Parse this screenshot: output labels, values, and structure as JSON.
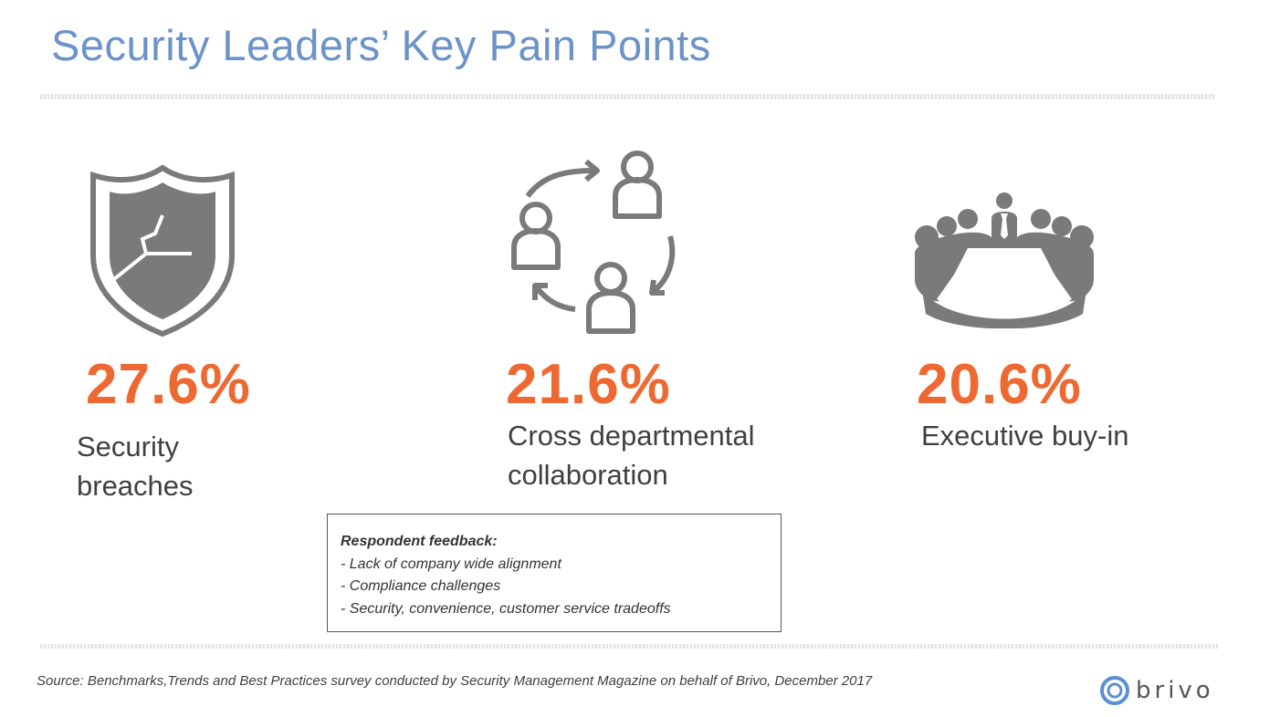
{
  "title": "Security Leaders’ Key Pain Points",
  "stats": [
    {
      "value": "27.6%",
      "label_lines": [
        "Security",
        "breaches"
      ],
      "icon": "broken-shield-icon"
    },
    {
      "value": "21.6%",
      "label_lines": [
        "Cross departmental",
        "collaboration"
      ],
      "icon": "collaboration-cycle-icon"
    },
    {
      "value": "20.6%",
      "label_lines": [
        "Executive buy-in"
      ],
      "icon": "boardroom-meeting-icon"
    }
  ],
  "feedback": {
    "title": "Respondent feedback:",
    "items": [
      "- Lack of company wide alignment",
      "- Compliance challenges",
      "- Security, convenience, customer service tradeoffs"
    ]
  },
  "source": "Source: Benchmarks,Trends and Best Practices survey conducted by Security Management Magazine on behalf of Brivo, December 2017",
  "logo": {
    "text": "brivo",
    "icon": "brivo-logo-icon"
  },
  "colors": {
    "title": "#6b93c9",
    "accent": "#ee6932",
    "icon": "#7a7a7a",
    "text": "#404040"
  }
}
